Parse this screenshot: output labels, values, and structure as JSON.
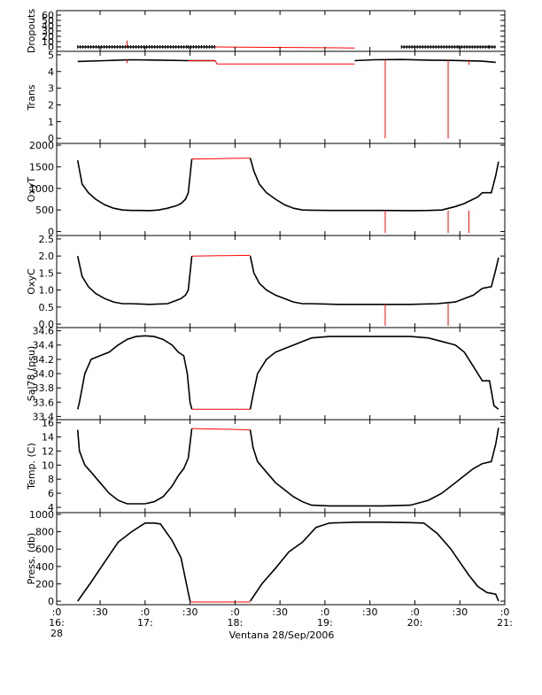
{
  "chart_data": {
    "type": "line",
    "title": "",
    "xlabel": "Ventana 28/Sep/2006",
    "x_tick_labels": [
      {
        "t": 16.467,
        "l1": ":0",
        "l2": "16:",
        "l3": "28"
      },
      {
        "t": 16.95,
        "l1": ":30",
        "l2": "",
        "l3": ""
      },
      {
        "t": 17.45,
        "l1": ":0",
        "l2": "17:",
        "l3": ""
      },
      {
        "t": 17.95,
        "l1": ":30",
        "l2": "",
        "l3": ""
      },
      {
        "t": 18.45,
        "l1": ":0",
        "l2": "18:",
        "l3": ""
      },
      {
        "t": 18.95,
        "l1": ":30",
        "l2": "",
        "l3": ""
      },
      {
        "t": 19.45,
        "l1": ":0",
        "l2": "19:",
        "l3": ""
      },
      {
        "t": 19.95,
        "l1": ":30",
        "l2": "",
        "l3": ""
      },
      {
        "t": 20.45,
        "l1": ":0",
        "l2": "20:",
        "l3": ""
      },
      {
        "t": 20.95,
        "l1": ":30",
        "l2": "",
        "l3": ""
      },
      {
        "t": 21.45,
        "l1": ":0",
        "l2": "21:",
        "l3": ""
      }
    ],
    "xlim": [
      16.467,
      21.45
    ],
    "colors": {
      "data": "#000000",
      "gap": "#ff0000",
      "axis": "#000000"
    },
    "panels": [
      {
        "ylabel": "Dropouts",
        "ylim": [
          -5,
          65
        ],
        "yticks": [
          "0",
          "10",
          "20",
          "30",
          "40",
          "50",
          "60"
        ],
        "ytick_values": [
          0,
          10,
          20,
          30,
          40,
          50,
          60
        ],
        "series": [
          {
            "style": "data",
            "x": [
              16.7,
              17.93,
              18.23,
              19.78,
              20.3,
              20.94,
              21.28,
              21.35
            ],
            "y": [
              0,
              0,
              0,
              null,
              0,
              0,
              0,
              0
            ]
          },
          {
            "style": "gap",
            "x": [
              18.23,
              19.78
            ],
            "y": [
              0,
              -2
            ]
          }
        ],
        "spikes": [
          {
            "style": "gap",
            "x": 17.25,
            "y0": 0,
            "y1": 12
          }
        ]
      },
      {
        "ylabel": "Trans",
        "ylim": [
          -0.2,
          5.1
        ],
        "yticks": [
          "0",
          "1",
          "2",
          "3",
          "4",
          "5"
        ],
        "ytick_values": [
          0,
          1,
          2,
          3,
          4,
          5
        ],
        "series": [
          {
            "style": "data",
            "x": [
              16.7,
              17.0,
              17.3,
              17.6,
              17.93,
              18.23
            ],
            "y": [
              4.6,
              4.65,
              4.7,
              4.68,
              4.65,
              4.65
            ]
          },
          {
            "style": "gap",
            "x": [
              17.93,
              18.23,
              18.25,
              19.78
            ],
            "y": [
              4.65,
              4.65,
              4.45,
              4.45
            ]
          },
          {
            "style": "data",
            "x": [
              19.78,
              20.0,
              20.3,
              20.6,
              20.9,
              21.2,
              21.35
            ],
            "y": [
              4.65,
              4.7,
              4.72,
              4.68,
              4.66,
              4.62,
              4.55
            ]
          }
        ],
        "spikes": [
          {
            "style": "gap",
            "x": 20.12,
            "y0": 4.7,
            "y1": 0
          },
          {
            "style": "gap",
            "x": 20.82,
            "y0": 4.7,
            "y1": 0
          },
          {
            "style": "gap",
            "x": 17.25,
            "y0": 4.7,
            "y1": 4.5
          },
          {
            "style": "gap",
            "x": 21.05,
            "y0": 4.7,
            "y1": 4.4
          }
        ]
      },
      {
        "ylabel": "OxyT",
        "ylim": [
          -50,
          2000
        ],
        "yticks": [
          "0",
          "500",
          "1000",
          "1500",
          "2000"
        ],
        "ytick_values": [
          0,
          500,
          1000,
          1500,
          2000
        ],
        "series": [
          {
            "style": "data",
            "x": [
              16.7,
              16.75,
              16.82,
              16.9,
              17.0,
              17.1,
              17.2,
              17.3,
              17.4,
              17.5,
              17.6,
              17.7,
              17.8,
              17.85,
              17.9,
              17.93,
              17.97
            ],
            "y": [
              1650,
              1100,
              900,
              750,
              620,
              540,
              500,
              490,
              490,
              485,
              500,
              540,
              600,
              650,
              750,
              900,
              1680
            ]
          },
          {
            "style": "gap",
            "x": [
              17.97,
              18.3,
              18.62
            ],
            "y": [
              1680,
              1690,
              1700
            ]
          },
          {
            "style": "data",
            "x": [
              18.62,
              18.66,
              18.72,
              18.8,
              18.9,
              19.0,
              19.1,
              19.2,
              19.3,
              19.5,
              19.8,
              20.1,
              20.4,
              20.6,
              20.75,
              20.9,
              21.0,
              21.05,
              21.15,
              21.2,
              21.3,
              21.35,
              21.38
            ],
            "y": [
              1700,
              1400,
              1100,
              900,
              750,
              620,
              540,
              500,
              495,
              490,
              490,
              490,
              485,
              490,
              500,
              580,
              650,
              700,
              800,
              900,
              900,
              1300,
              1620
            ]
          }
        ],
        "spikes": [
          {
            "style": "gap",
            "x": 20.12,
            "y0": 490,
            "y1": -30
          },
          {
            "style": "gap",
            "x": 20.82,
            "y0": 490,
            "y1": -30
          },
          {
            "style": "gap",
            "x": 21.05,
            "y0": 490,
            "y1": -30
          }
        ]
      },
      {
        "ylabel": "OxyC",
        "ylim": [
          -0.05,
          2.55
        ],
        "yticks": [
          "0.0",
          "0.5",
          "1.0",
          "1.5",
          "2.0",
          "2.5"
        ],
        "ytick_values": [
          0,
          0.5,
          1.0,
          1.5,
          2.0,
          2.5
        ],
        "series": [
          {
            "style": "data",
            "x": [
              16.7,
              16.75,
              16.82,
              16.9,
              17.0,
              17.1,
              17.2,
              17.3,
              17.5,
              17.7,
              17.8,
              17.85,
              17.9,
              17.93,
              17.97
            ],
            "y": [
              2.0,
              1.4,
              1.1,
              0.9,
              0.75,
              0.65,
              0.6,
              0.6,
              0.58,
              0.6,
              0.7,
              0.75,
              0.85,
              1.0,
              2.0
            ]
          },
          {
            "style": "gap",
            "x": [
              17.97,
              18.3,
              18.62
            ],
            "y": [
              2.0,
              2.01,
              2.02
            ]
          },
          {
            "style": "data",
            "x": [
              18.62,
              18.66,
              18.72,
              18.8,
              18.9,
              19.0,
              19.1,
              19.2,
              19.3,
              19.6,
              20.0,
              20.4,
              20.7,
              20.9,
              21.0,
              21.1,
              21.2,
              21.3,
              21.35,
              21.38
            ],
            "y": [
              2.0,
              1.5,
              1.2,
              1.0,
              0.85,
              0.75,
              0.65,
              0.6,
              0.6,
              0.58,
              0.58,
              0.58,
              0.6,
              0.65,
              0.75,
              0.85,
              1.05,
              1.1,
              1.6,
              1.95
            ]
          }
        ],
        "spikes": [
          {
            "style": "gap",
            "x": 20.12,
            "y0": 0.6,
            "y1": -0.05
          },
          {
            "style": "gap",
            "x": 20.82,
            "y0": 0.6,
            "y1": -0.05
          }
        ]
      },
      {
        "ylabel": "Sal78 (psu)",
        "ylim": [
          33.38,
          34.62
        ],
        "yticks": [
          "33.4",
          "33.6",
          "33.8",
          "34.0",
          "34.2",
          "34.4",
          "34.6"
        ],
        "ytick_values": [
          33.4,
          33.6,
          33.8,
          34.0,
          34.2,
          34.4,
          34.6
        ],
        "series": [
          {
            "style": "data",
            "x": [
              16.7,
              16.72,
              16.78,
              16.85,
              16.95,
              17.05,
              17.15,
              17.25,
              17.35,
              17.45,
              17.55,
              17.65,
              17.75,
              17.82,
              17.88,
              17.92,
              17.95,
              17.97
            ],
            "y": [
              33.5,
              33.6,
              34.0,
              34.2,
              34.25,
              34.3,
              34.4,
              34.48,
              34.52,
              34.53,
              34.52,
              34.48,
              34.4,
              34.3,
              34.25,
              34.0,
              33.6,
              33.5
            ]
          },
          {
            "style": "gap",
            "x": [
              17.97,
              18.3,
              18.62
            ],
            "y": [
              33.5,
              33.5,
              33.5
            ]
          },
          {
            "style": "data",
            "x": [
              18.62,
              18.65,
              18.7,
              18.8,
              18.9,
              19.0,
              19.1,
              19.2,
              19.3,
              19.5,
              19.8,
              20.1,
              20.4,
              20.6,
              20.75,
              20.9,
              21.0,
              21.1,
              21.2,
              21.28,
              21.33,
              21.38
            ],
            "y": [
              33.5,
              33.7,
              34.0,
              34.2,
              34.3,
              34.35,
              34.4,
              34.45,
              34.5,
              34.52,
              34.52,
              34.52,
              34.52,
              34.5,
              34.45,
              34.4,
              34.3,
              34.1,
              33.9,
              33.9,
              33.55,
              33.5
            ]
          }
        ],
        "spikes": []
      },
      {
        "ylabel": "Temp. (C)",
        "ylim": [
          3.5,
          16.2
        ],
        "yticks": [
          "4",
          "6",
          "8",
          "10",
          "12",
          "14",
          "16"
        ],
        "ytick_values": [
          4,
          6,
          8,
          10,
          12,
          14,
          16
        ],
        "series": [
          {
            "style": "data",
            "x": [
              16.7,
              16.72,
              16.78,
              16.85,
              16.95,
              17.05,
              17.15,
              17.25,
              17.35,
              17.45,
              17.55,
              17.65,
              17.75,
              17.82,
              17.88,
              17.93,
              17.97
            ],
            "y": [
              15.0,
              12.0,
              10.0,
              9.0,
              7.5,
              6.0,
              5.0,
              4.5,
              4.5,
              4.5,
              4.8,
              5.5,
              7.0,
              8.5,
              9.5,
              11.0,
              15.2
            ]
          },
          {
            "style": "gap",
            "x": [
              17.97,
              18.3,
              18.62
            ],
            "y": [
              15.2,
              15.1,
              15.0
            ]
          },
          {
            "style": "data",
            "x": [
              18.62,
              18.65,
              18.7,
              18.8,
              18.9,
              19.0,
              19.1,
              19.2,
              19.3,
              19.5,
              19.8,
              20.1,
              20.4,
              20.6,
              20.75,
              20.9,
              21.0,
              21.1,
              21.2,
              21.3,
              21.35,
              21.38
            ],
            "y": [
              15.0,
              12.5,
              10.5,
              9.0,
              7.5,
              6.5,
              5.5,
              4.8,
              4.3,
              4.2,
              4.2,
              4.2,
              4.3,
              5.0,
              6.0,
              7.5,
              8.5,
              9.5,
              10.2,
              10.5,
              13.0,
              15.3
            ]
          }
        ],
        "spikes": []
      },
      {
        "ylabel": "Press. (db)",
        "ylim": [
          -20,
          1000
        ],
        "yticks": [
          "0",
          "200",
          "400",
          "600",
          "800",
          "1000"
        ],
        "ytick_values": [
          0,
          200,
          400,
          600,
          800,
          1000
        ],
        "series": [
          {
            "style": "data",
            "x": [
              16.7,
              16.85,
              17.0,
              17.15,
              17.3,
              17.45,
              17.55,
              17.62,
              17.75,
              17.85,
              17.95
            ],
            "y": [
              0,
              220,
              450,
              680,
              800,
              900,
              900,
              890,
              700,
              500,
              0
            ]
          },
          {
            "style": "gap",
            "x": [
              17.95,
              18.62
            ],
            "y": [
              -10,
              -10
            ]
          },
          {
            "style": "data",
            "x": [
              18.62,
              18.75,
              18.9,
              19.05,
              19.2,
              19.35,
              19.5,
              19.8,
              20.1,
              20.4,
              20.55,
              20.7,
              20.85,
              20.95,
              21.05,
              21.15,
              21.25,
              21.35,
              21.38
            ],
            "y": [
              0,
              200,
              380,
              570,
              680,
              850,
              900,
              910,
              910,
              905,
              900,
              780,
              600,
              450,
              300,
              170,
              100,
              80,
              0
            ]
          }
        ],
        "spikes": []
      }
    ]
  }
}
